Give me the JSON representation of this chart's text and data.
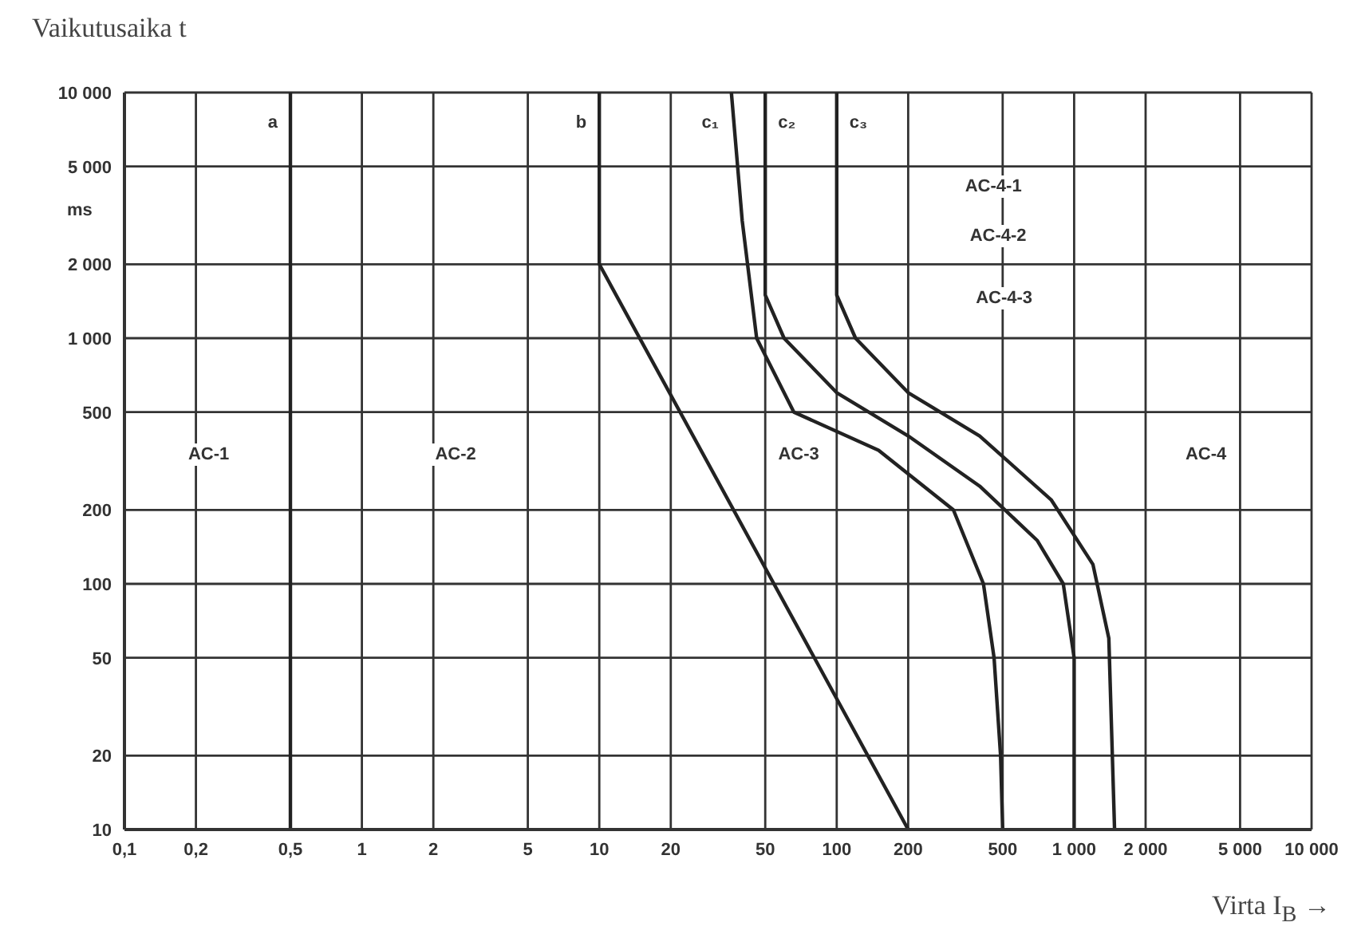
{
  "chart_data": {
    "type": "line",
    "ylabel": "Vaikutusaika t",
    "xlabel": "Virta I$_{B}$ →",
    "log": "xy",
    "grid": true,
    "legend": false,
    "marker": "none",
    "line_style": "solid",
    "xlim": [
      0.1,
      10000
    ],
    "ylim": [
      10,
      10000
    ],
    "xticks": [
      {
        "value": 0.1,
        "label": "0,1"
      },
      {
        "value": 0.2,
        "label": "0,2"
      },
      {
        "value": 0.5,
        "label": "0,5"
      },
      1,
      2,
      5,
      10,
      20,
      50,
      100,
      200,
      500,
      {
        "value": 1000,
        "label": "1 000"
      },
      {
        "value": 2000,
        "label": "2 000"
      },
      {
        "value": 5000,
        "label": "5 000"
      },
      {
        "value": 10000,
        "label": "10 000"
      }
    ],
    "yticks": [
      10,
      20,
      50,
      100,
      200,
      500,
      {
        "value": 1000,
        "label": "1 000"
      },
      {
        "value": 2000,
        "label": "2 000"
      },
      {
        "value": 5000,
        "label": "5 000"
      },
      {
        "value": 10000,
        "label": "10 000"
      }
    ],
    "series": [
      {
        "name": "a",
        "color": "#222222",
        "x": [
          0.5,
          0.5
        ],
        "values": [
          10000,
          10
        ]
      },
      {
        "name": "b",
        "color": "#222222",
        "x": [
          10,
          10,
          200
        ],
        "values": [
          10000,
          2000,
          10
        ]
      },
      {
        "name": "c₁",
        "color": "#222222",
        "x": [
          36,
          40,
          46,
          66,
          150,
          310,
          415,
          460,
          490,
          500
        ],
        "values": [
          10000,
          3000,
          1000,
          500,
          350,
          200,
          100,
          50,
          20,
          10
        ]
      },
      {
        "name": "c₂",
        "color": "#222222",
        "x": [
          50,
          50,
          60,
          100,
          200,
          400,
          700,
          900,
          1000,
          1000
        ],
        "values": [
          10000,
          1500,
          1000,
          600,
          400,
          250,
          150,
          100,
          50,
          10
        ]
      },
      {
        "name": "c₃",
        "color": "#222222",
        "x": [
          100,
          100,
          120,
          200,
          400,
          800,
          1200,
          1400,
          1480
        ],
        "values": [
          10000,
          1500,
          1000,
          600,
          400,
          220,
          120,
          60,
          10
        ]
      }
    ],
    "annotations": [
      "ms",
      "AC-1",
      "AC-2",
      "AC-3",
      "AC-4",
      "AC-4-1",
      "AC-4-2",
      "AC-4-3"
    ]
  }
}
